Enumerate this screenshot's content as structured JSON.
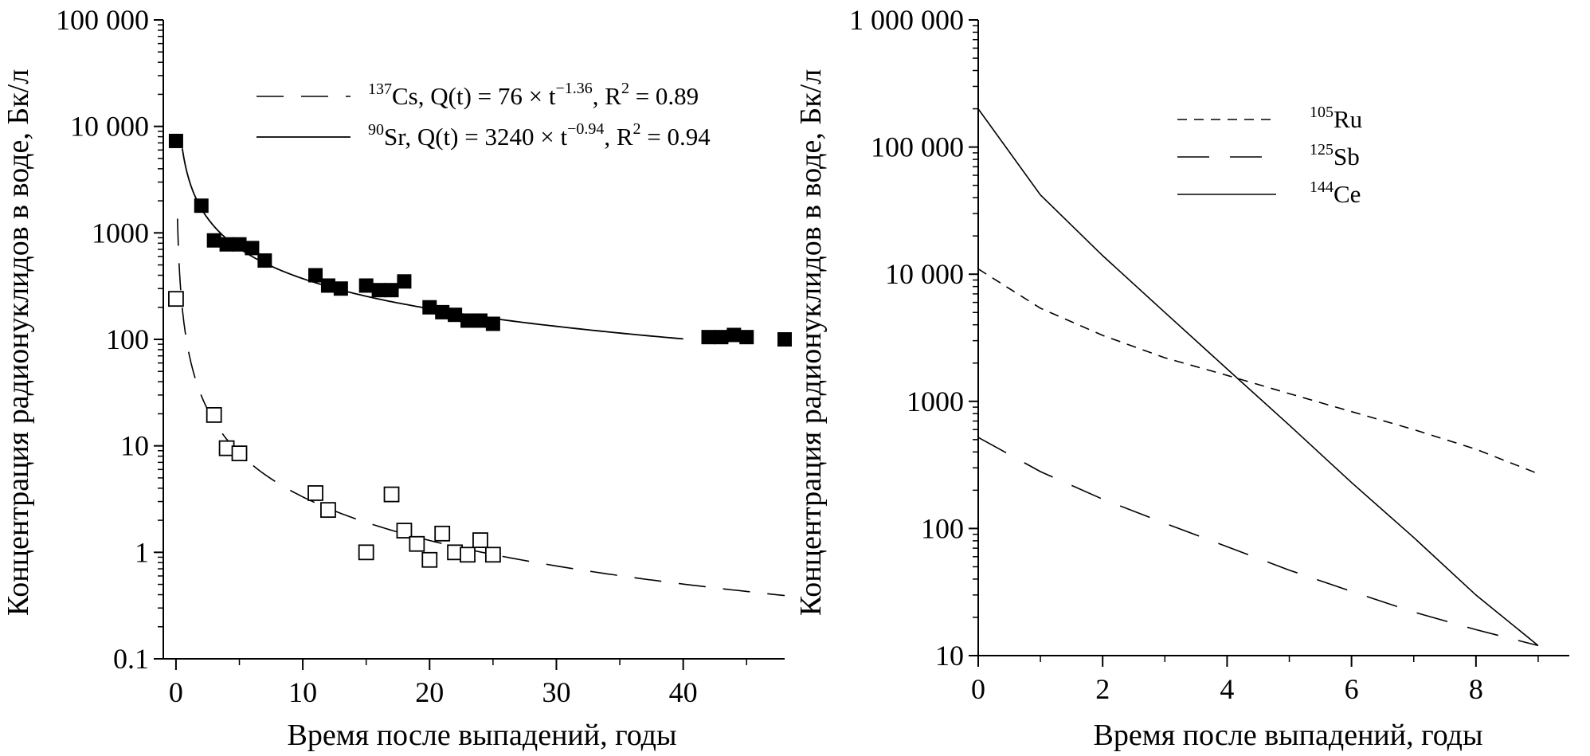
{
  "chart_data": [
    {
      "type": "scatter",
      "xlabel": "Время после выпадений, годы",
      "ylabel": "Концентрация радионуклидов в воде, Бк/л",
      "yscale": "log",
      "xlim": [
        -1,
        48
      ],
      "ylim": [
        0.1,
        100000
      ],
      "xticks": [
        0,
        10,
        20,
        30,
        40
      ],
      "xtick_labels": [
        "0",
        "10",
        "20",
        "30",
        "40"
      ],
      "yticks": [
        0.1,
        1,
        10,
        100,
        1000,
        10000,
        100000
      ],
      "ytick_labels": [
        "0.1",
        "1",
        "10",
        "100",
        "1000",
        "10 000",
        "100 000"
      ],
      "legend": [
        {
          "key": "cs",
          "isotope_mass": "137",
          "element": "Cs",
          "text": ", Q(t) = 76 × t",
          "exponent": "−1.36",
          "r2_text": ", R",
          "r2_sup": "2",
          "r2_value": " = 0.89"
        },
        {
          "key": "sr",
          "isotope_mass": "90",
          "element": "Sr",
          "text": ", Q(t) = 3240 × t",
          "exponent": "−0.94",
          "r2_text": ", R",
          "r2_sup": "2",
          "r2_value": " = 0.94"
        }
      ],
      "series": [
        {
          "name": "90Sr",
          "marker": "filled-square",
          "points": [
            [
              0,
              7300
            ],
            [
              2,
              1800
            ],
            [
              3,
              850
            ],
            [
              4,
              780
            ],
            [
              5,
              780
            ],
            [
              6,
              720
            ],
            [
              7,
              550
            ],
            [
              11,
              400
            ],
            [
              12,
              320
            ],
            [
              13,
              300
            ],
            [
              15,
              320
            ],
            [
              16,
              290
            ],
            [
              17,
              290
            ],
            [
              18,
              350
            ],
            [
              20,
              200
            ],
            [
              21,
              180
            ],
            [
              22,
              170
            ],
            [
              23,
              150
            ],
            [
              24,
              150
            ],
            [
              25,
              140
            ],
            [
              42,
              105
            ],
            [
              43,
              105
            ],
            [
              44,
              110
            ],
            [
              45,
              105
            ],
            [
              48,
              100
            ]
          ],
          "fit": {
            "a": 3240,
            "b": -0.94,
            "t_range": [
              0.1,
              40
            ]
          }
        },
        {
          "name": "137Cs",
          "marker": "open-square",
          "points": [
            [
              0,
              240
            ],
            [
              3,
              19.5
            ],
            [
              4,
              9.5
            ],
            [
              5,
              8.5
            ],
            [
              11,
              3.6
            ],
            [
              12,
              2.5
            ],
            [
              15,
              1.0
            ],
            [
              17,
              3.5
            ],
            [
              18,
              1.6
            ],
            [
              19,
              1.2
            ],
            [
              20,
              0.85
            ],
            [
              21,
              1.5
            ],
            [
              22,
              1.0
            ],
            [
              23,
              0.95
            ],
            [
              24,
              1.3
            ],
            [
              25,
              0.95
            ]
          ],
          "fit": {
            "a": 76,
            "b": -1.36,
            "t_range": [
              0.1,
              48
            ]
          }
        }
      ]
    },
    {
      "type": "line",
      "xlabel": "Время после выпадений, годы",
      "ylabel": "Концентрация радионуклидов в воде, Бк/л",
      "yscale": "log",
      "xlim": [
        0,
        9.5
      ],
      "ylim": [
        10,
        1000000
      ],
      "xticks": [
        0,
        2,
        4,
        6,
        8
      ],
      "xtick_labels": [
        "0",
        "2",
        "4",
        "6",
        "8"
      ],
      "yticks": [
        10,
        100,
        1000,
        10000,
        100000,
        1000000
      ],
      "ytick_labels": [
        "10",
        "100",
        "1000",
        "10 000",
        "100 000",
        "1 000 000"
      ],
      "series": [
        {
          "name": "105Ru",
          "isotope_mass": "105",
          "element": "Ru",
          "style": "short-dash",
          "x": [
            0,
            1,
            2,
            3,
            4,
            5,
            6,
            7,
            8,
            9
          ],
          "values": [
            11000,
            5400,
            3300,
            2200,
            1600,
            1150,
            830,
            600,
            420,
            270
          ]
        },
        {
          "name": "125Sb",
          "isotope_mass": "125",
          "element": "Sb",
          "style": "long-dash",
          "x": [
            0,
            1,
            2,
            3,
            4,
            5,
            6,
            7,
            8,
            9
          ],
          "values": [
            520,
            280,
            170,
            110,
            72,
            47,
            32,
            22,
            16,
            12
          ]
        },
        {
          "name": "144Ce",
          "isotope_mass": "144",
          "element": "Ce",
          "style": "solid",
          "x": [
            0,
            1,
            2,
            3,
            4,
            5,
            6,
            7,
            8,
            9
          ],
          "values": [
            200000,
            42000,
            14000,
            5000,
            1800,
            650,
            230,
            85,
            30,
            12
          ]
        }
      ]
    }
  ]
}
